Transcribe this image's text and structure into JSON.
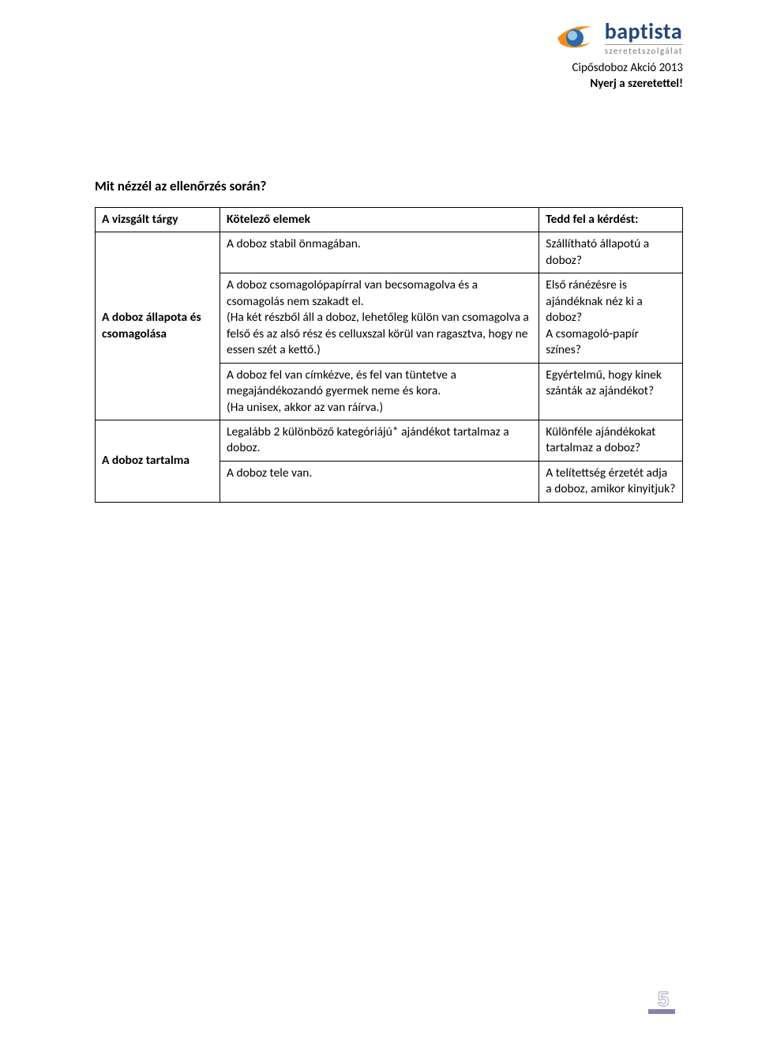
{
  "logo": {
    "main_text": "baptista",
    "sub_text": "szeretetszolgálat",
    "swoosh_color": "#f28c1e",
    "sphere_outer": "#2a6aa8",
    "sphere_inner": "#9fc8e6"
  },
  "header": {
    "line1": "Cipősdoboz Akció 2013",
    "line2": "Nyerj a szeretettel!"
  },
  "section_title": "Mit nézzél az ellenőrzés során?",
  "table": {
    "head": {
      "c1": "A vizsgált tárgy",
      "c2": "Kötelező elemek",
      "c3": "Tedd fel a kérdést:"
    },
    "group1": {
      "label": "A doboz állapota és csomagolása",
      "r1c2": "A doboz stabil önmagában.",
      "r1c3": "Szállítható állapotú a doboz?",
      "r2c2": "A doboz csomagolópapírral van becsomagolva és a csomagolás nem szakadt el.\n(Ha két részből áll a doboz, lehetőleg külön van csomagolva a felső és az alsó rész és celluxszal körül van ragasztva, hogy ne essen szét a kettő.)",
      "r2c3": "Első ránézésre is ajándéknak néz ki a doboz?\nA csomagoló-papír színes?",
      "r3c2": "A doboz fel van címkézve, és fel van tüntetve a megajándékozandó gyermek neme és kora.\n(Ha unisex, akkor az van ráírva.)",
      "r3c3": "Egyértelmű, hogy kinek szánták az ajándékot?"
    },
    "group2": {
      "label": "A doboz tartalma",
      "r1c2": "Legalább 2 különböző kategóriájú* ajándékot tartalmaz a doboz.",
      "r1c3": "Különféle ajándékokat tartalmaz a doboz?",
      "r2c2": "A doboz tele van.",
      "r2c3": "A telítettség érzetét adja a doboz, amikor kinyitjuk?"
    }
  },
  "page_number": "5",
  "page_number_colors": {
    "outline": "#b7b0c7",
    "bar": "#8a7fb0"
  }
}
